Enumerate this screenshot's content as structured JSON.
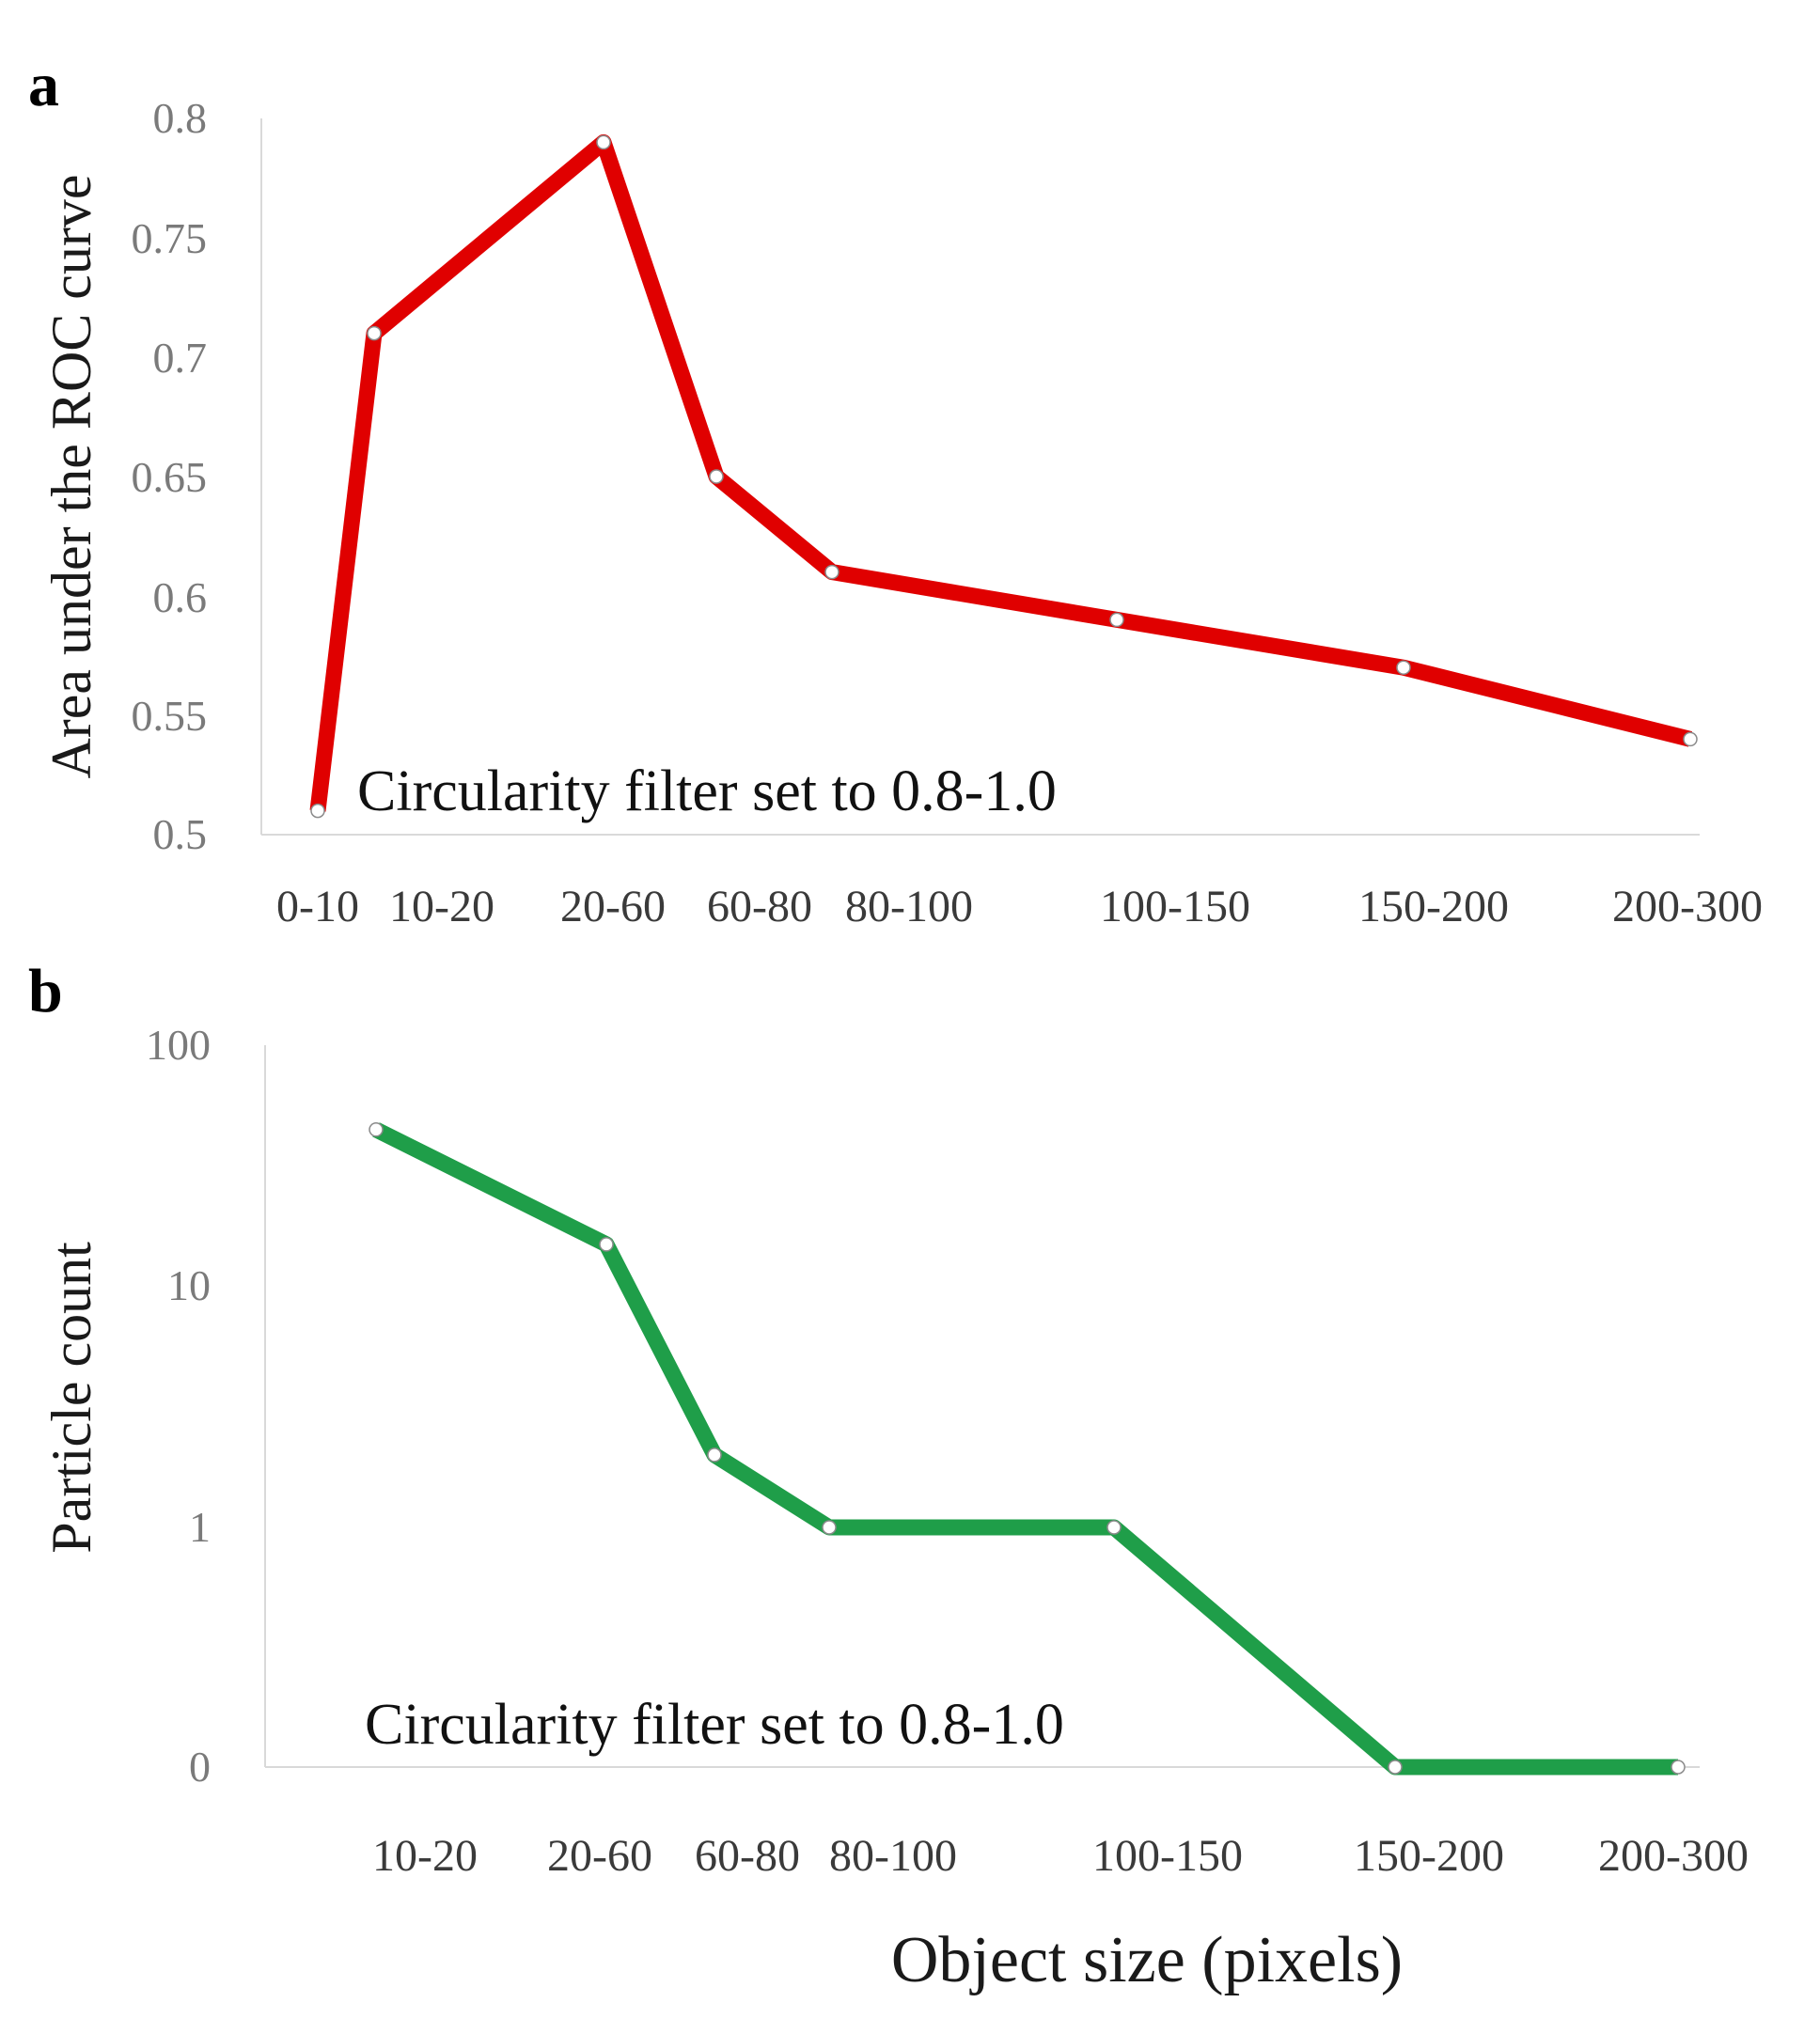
{
  "chart_data": [
    {
      "panel": "a",
      "type": "line",
      "ylabel": "Area under the ROC curve",
      "annotation": "Circularity filter set to 0.8-1.0",
      "categories": [
        "0-10",
        "10-20",
        "20-60",
        "60-80",
        "80-100",
        "100-150",
        "150-200",
        "200-300"
      ],
      "series": [
        {
          "name": "AUC",
          "color": "#e00000",
          "values": [
            0.51,
            0.71,
            0.79,
            0.65,
            0.61,
            0.59,
            0.57,
            0.54
          ]
        }
      ],
      "y_ticks": [
        "0.5",
        "0.55",
        "0.6",
        "0.65",
        "0.7",
        "0.75",
        "0.8"
      ],
      "ylim": [
        0.5,
        0.8
      ]
    },
    {
      "panel": "b",
      "type": "line",
      "ylabel": "Particle count",
      "xlabel": "Object size (pixels)",
      "annotation": "Circularity filter set to 0.8-1.0",
      "yscale": "log",
      "categories": [
        "10-20",
        "20-60",
        "60-80",
        "80-100",
        "100-150",
        "150-200",
        "200-300"
      ],
      "series": [
        {
          "name": "Particle count",
          "color": "#1f9e49",
          "values": [
            45,
            15,
            2,
            1,
            1,
            0,
            0
          ]
        }
      ],
      "y_ticks": [
        "0",
        "1",
        "10",
        "100"
      ]
    }
  ]
}
